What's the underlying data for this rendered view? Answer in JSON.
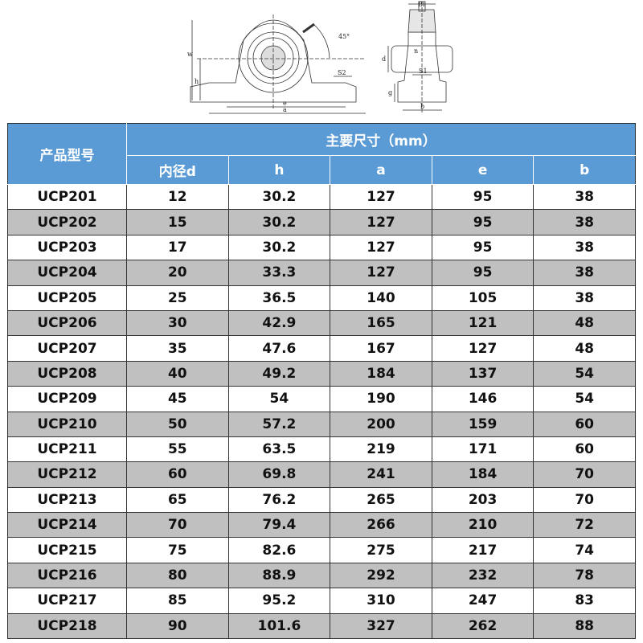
{
  "drawing": {
    "labels": {
      "w": "w",
      "h": "h",
      "e": "e",
      "a": "a",
      "s2": "S2",
      "angle": "45°",
      "bi": "Bi",
      "n": "n",
      "d": "d",
      "s1": "S1",
      "g": "g",
      "b": "b"
    }
  },
  "table": {
    "model_header": "产品型号",
    "group_header": "主要尺寸（mm）",
    "columns": [
      "内径d",
      "h",
      "a",
      "e",
      "b"
    ],
    "rows": [
      [
        "UCP201",
        "12",
        "30.2",
        "127",
        "95",
        "38"
      ],
      [
        "UCP202",
        "15",
        "30.2",
        "127",
        "95",
        "38"
      ],
      [
        "UCP203",
        "17",
        "30.2",
        "127",
        "95",
        "38"
      ],
      [
        "UCP204",
        "20",
        "33.3",
        "127",
        "95",
        "38"
      ],
      [
        "UCP205",
        "25",
        "36.5",
        "140",
        "105",
        "38"
      ],
      [
        "UCP206",
        "30",
        "42.9",
        "165",
        "121",
        "48"
      ],
      [
        "UCP207",
        "35",
        "47.6",
        "167",
        "127",
        "48"
      ],
      [
        "UCP208",
        "40",
        "49.2",
        "184",
        "137",
        "54"
      ],
      [
        "UCP209",
        "45",
        "54",
        "190",
        "146",
        "54"
      ],
      [
        "UCP210",
        "50",
        "57.2",
        "200",
        "159",
        "60"
      ],
      [
        "UCP211",
        "55",
        "63.5",
        "219",
        "171",
        "60"
      ],
      [
        "UCP212",
        "60",
        "69.8",
        "241",
        "184",
        "70"
      ],
      [
        "UCP213",
        "65",
        "76.2",
        "265",
        "203",
        "70"
      ],
      [
        "UCP214",
        "70",
        "79.4",
        "266",
        "210",
        "72"
      ],
      [
        "UCP215",
        "75",
        "82.6",
        "275",
        "217",
        "74"
      ],
      [
        "UCP216",
        "80",
        "88.9",
        "292",
        "232",
        "78"
      ],
      [
        "UCP217",
        "85",
        "95.2",
        "310",
        "247",
        "83"
      ],
      [
        "UCP218",
        "90",
        "101.6",
        "327",
        "262",
        "88"
      ]
    ]
  },
  "colors": {
    "header": "#5b9bd5",
    "alt_row": "#c0c0c0"
  }
}
